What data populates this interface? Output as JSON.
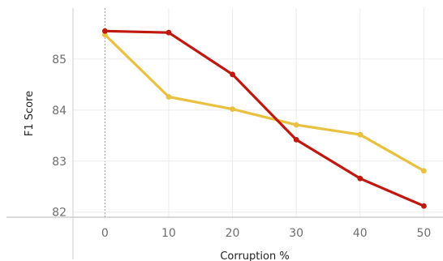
{
  "chart_data": {
    "type": "line",
    "xlabel": "Corruption %",
    "ylabel": "F1 Score",
    "x": [
      0,
      10,
      20,
      30,
      40,
      50
    ],
    "x_ticks": [
      "0",
      "10",
      "20",
      "30",
      "40",
      "50"
    ],
    "y_ticks": [
      "82",
      "83",
      "84",
      "85"
    ],
    "xlim": [
      -5,
      53
    ],
    "ylim": [
      81.9,
      86.0
    ],
    "grid": true,
    "series": [
      {
        "color": "#c0170f",
        "values": [
          85.55,
          85.52,
          84.7,
          83.42,
          82.66,
          82.12
        ]
      },
      {
        "color": "#eac13f",
        "values": [
          85.48,
          84.26,
          84.02,
          83.71,
          83.52,
          82.81
        ]
      }
    ]
  }
}
